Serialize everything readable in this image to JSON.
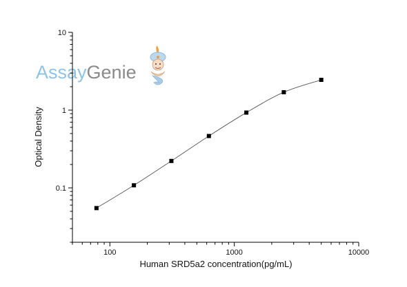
{
  "logo": {
    "text_a": "Assay",
    "text_b": "Genie",
    "color_a": "#8ec3e6",
    "color_b": "#8a8a8a",
    "icon": "genie-mascot-icon"
  },
  "chart_data": {
    "type": "scatter",
    "title": "",
    "xlabel": "Human SRD5a2 concentration(pg/mL)",
    "ylabel": "Optical Density",
    "x_scale": "log",
    "y_scale": "log",
    "xlim": [
      50,
      10000
    ],
    "ylim": [
      0.02,
      10
    ],
    "x_ticks": [
      100,
      1000,
      10000
    ],
    "x_tick_labels": [
      "100",
      "1000",
      "10000"
    ],
    "y_ticks": [
      0.1,
      1,
      10
    ],
    "y_tick_labels": [
      "0.1",
      "1",
      "10"
    ],
    "grid": false,
    "legend": "none",
    "series": [
      {
        "x": [
          78,
          156,
          312,
          625,
          1250,
          2500,
          5000
        ],
        "y": [
          0.055,
          0.108,
          0.222,
          0.465,
          0.93,
          1.7,
          2.45
        ],
        "marker": "square",
        "fit_line": true
      }
    ],
    "marker_color": "#000000",
    "line_color": "#555555"
  }
}
